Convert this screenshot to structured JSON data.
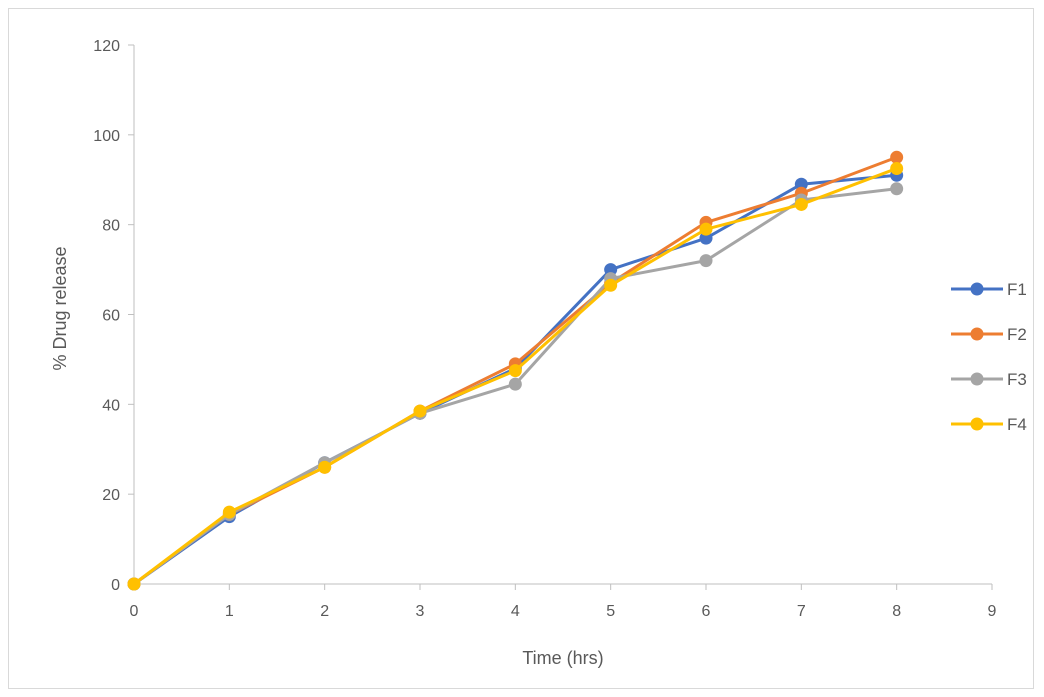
{
  "chart_data": {
    "type": "line",
    "title": "",
    "xlabel": "Time (hrs)",
    "ylabel": "% Drug release",
    "xlim": [
      0,
      9
    ],
    "ylim": [
      0,
      120
    ],
    "xticks": [
      "0",
      "1",
      "2",
      "3",
      "4",
      "5",
      "6",
      "7",
      "8",
      "9"
    ],
    "yticks": [
      "0",
      "20",
      "40",
      "60",
      "80",
      "100",
      "120"
    ],
    "grid": false,
    "legend": "right",
    "x": [
      0,
      1,
      2,
      3,
      4,
      5,
      6,
      7,
      8
    ],
    "series": [
      {
        "name": "F1",
        "color": "#4472C4",
        "values": [
          0,
          15,
          27,
          38,
          48,
          70,
          77,
          89,
          91
        ]
      },
      {
        "name": "F2",
        "color": "#ED7D31",
        "values": [
          0,
          15.5,
          26,
          38.5,
          49,
          67,
          80.5,
          87,
          95
        ]
      },
      {
        "name": "F3",
        "color": "#A5A5A5",
        "values": [
          0,
          15.5,
          27,
          38,
          44.5,
          68,
          72,
          85.5,
          88
        ]
      },
      {
        "name": "F4",
        "color": "#FFC000",
        "values": [
          0,
          16,
          26,
          38.5,
          47.5,
          66.5,
          79,
          84.5,
          92.5
        ]
      }
    ]
  }
}
